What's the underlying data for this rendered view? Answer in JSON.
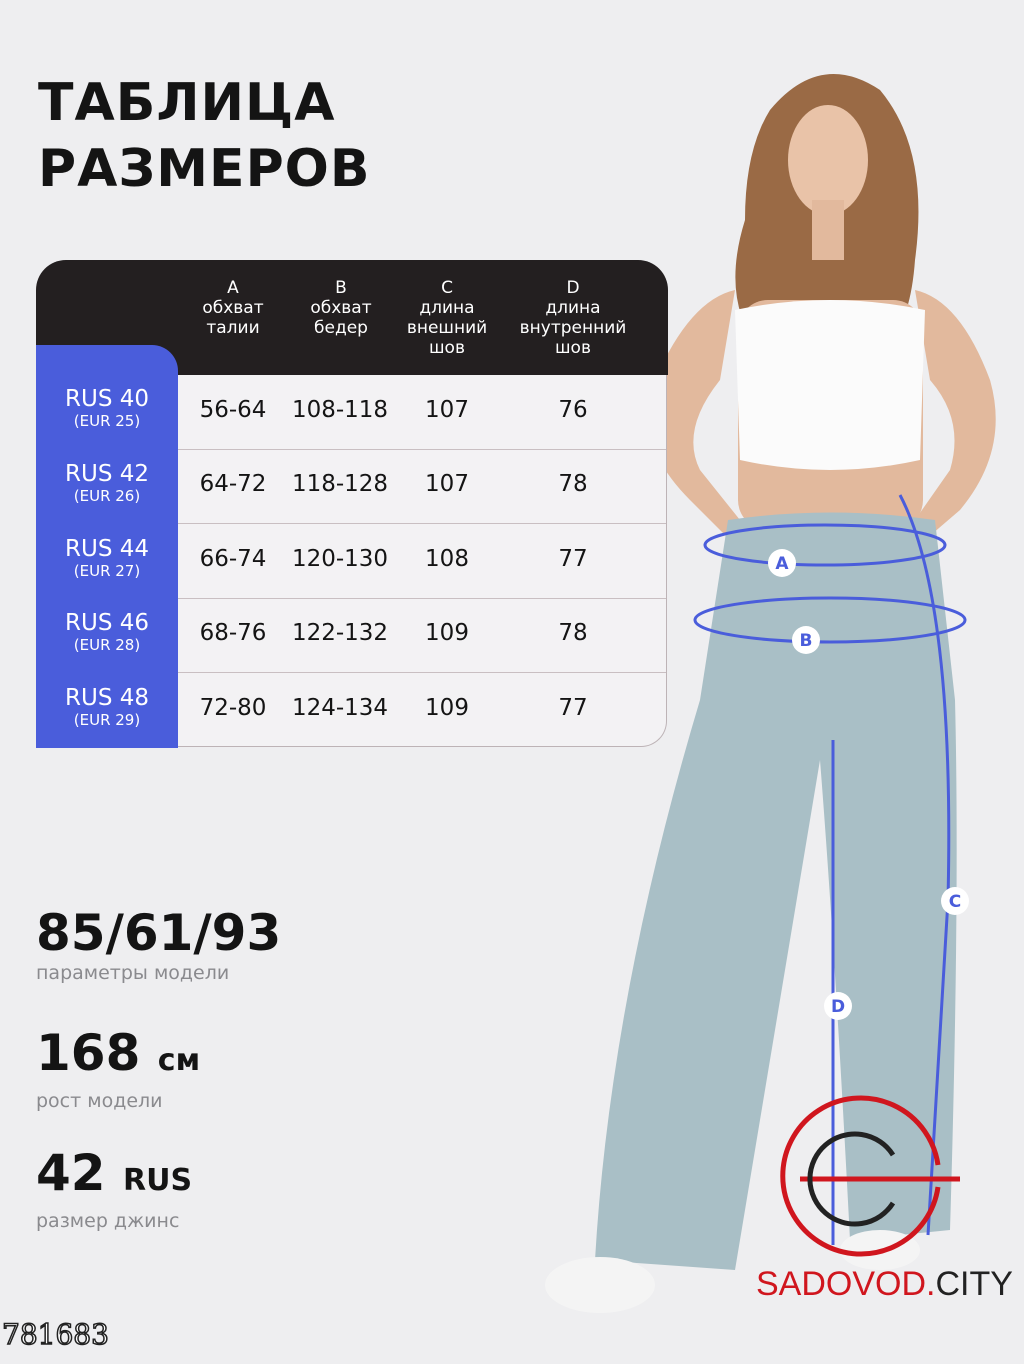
{
  "title": {
    "line1": "ТАБЛИЦА",
    "line2": "РАЗМЕРОВ"
  },
  "table": {
    "columns": [
      {
        "letter": "A",
        "line1": "обхват",
        "line2": "талии",
        "line3": ""
      },
      {
        "letter": "B",
        "line1": "обхват",
        "line2": "бедер",
        "line3": ""
      },
      {
        "letter": "C",
        "line1": "длина",
        "line2": "внешний",
        "line3": "шов"
      },
      {
        "letter": "D",
        "line1": "длина",
        "line2": "внутренний",
        "line3": "шов"
      }
    ],
    "rows": [
      {
        "rus": "RUS 40",
        "eur": "(EUR 25)",
        "values": [
          "56-64",
          "108-118",
          "107",
          "76"
        ]
      },
      {
        "rus": "RUS 42",
        "eur": "(EUR 26)",
        "values": [
          "64-72",
          "118-128",
          "107",
          "78"
        ]
      },
      {
        "rus": "RUS 44",
        "eur": "(EUR 27)",
        "values": [
          "66-74",
          "120-130",
          "108",
          "77"
        ]
      },
      {
        "rus": "RUS 46",
        "eur": "(EUR 28)",
        "values": [
          "68-76",
          "122-132",
          "109",
          "78"
        ]
      },
      {
        "rus": "RUS 48",
        "eur": "(EUR 29)",
        "values": [
          "72-80",
          "124-134",
          "109",
          "77"
        ]
      }
    ]
  },
  "model": {
    "params": {
      "value": "85/61/93",
      "label": "параметры модели"
    },
    "height": {
      "value": "168",
      "unit": "см",
      "label": "рост модели"
    },
    "size": {
      "value": "42",
      "unit": "RUS",
      "label": "размер джинс"
    }
  },
  "measure_markers": [
    "A",
    "B",
    "C",
    "D"
  ],
  "article_code": "781683",
  "logo": {
    "text_red": "SADOVOD.",
    "text_dark": "CITY"
  },
  "colors": {
    "accent_blue": "#4a5ddb",
    "header_dark": "#231f20",
    "logo_red": "#d0161e",
    "background": "#eeeef0"
  }
}
